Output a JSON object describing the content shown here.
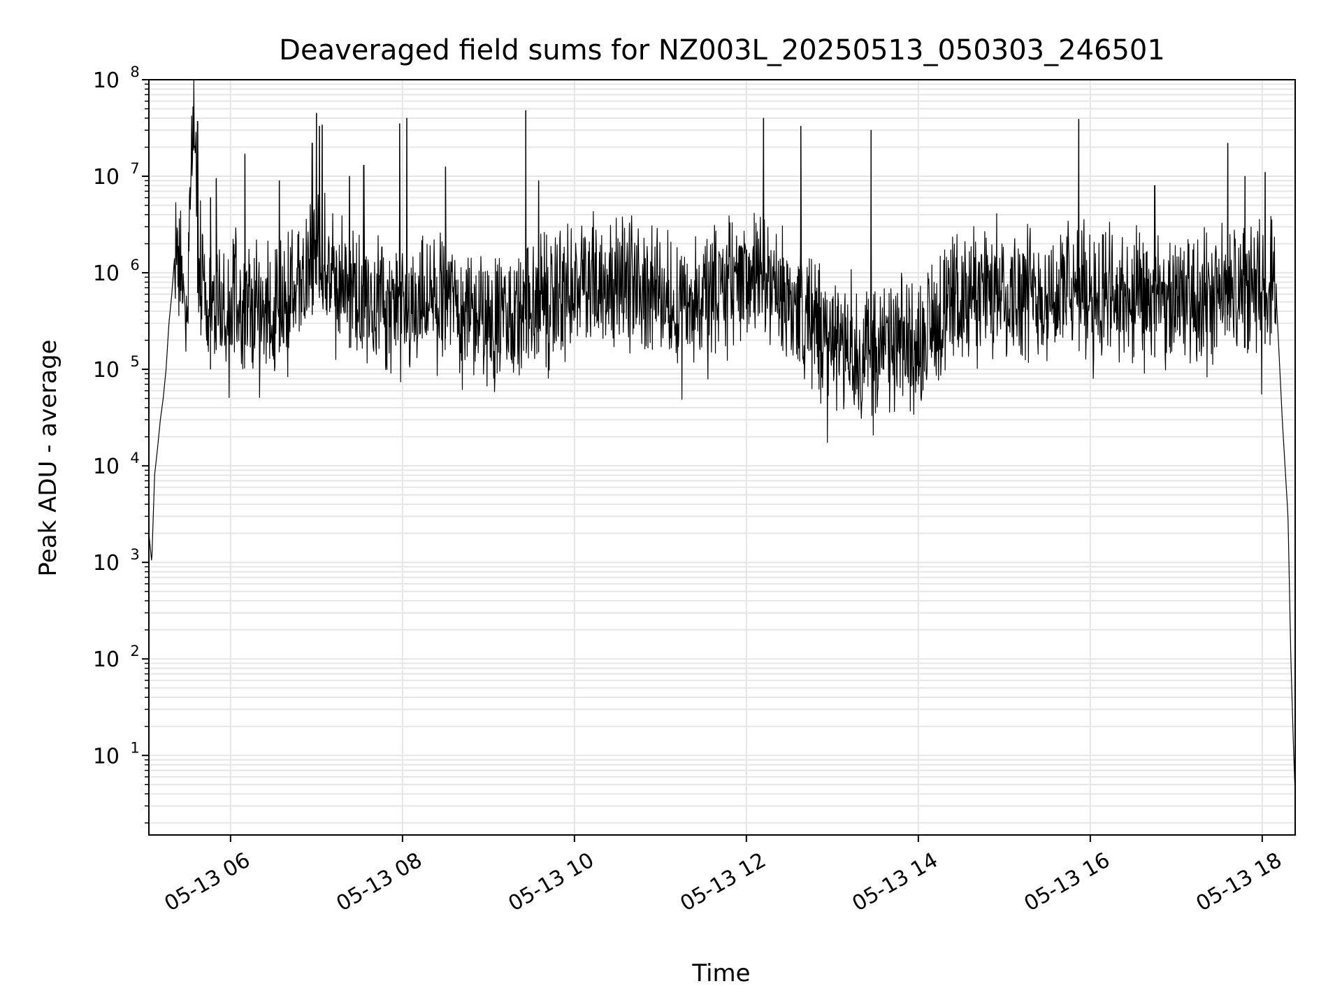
{
  "chart_data": {
    "type": "line",
    "title": "Deaveraged field sums for NZ003L_20250513_050303_246501",
    "xlabel": "Time",
    "ylabel": "Peak ADU - average",
    "yscale": "log",
    "ylim": [
      1.5,
      100000000
    ],
    "xlim": [
      "2025-05-13 05:03",
      "2025-05-13 18:23"
    ],
    "grid": true,
    "line_color": "#000000",
    "grid_color": "#e5e5e5",
    "x_ticks": [
      {
        "value": "2025-05-13 06:00",
        "label": "05-13 06"
      },
      {
        "value": "2025-05-13 08:00",
        "label": "05-13 08"
      },
      {
        "value": "2025-05-13 10:00",
        "label": "05-13 10"
      },
      {
        "value": "2025-05-13 12:00",
        "label": "05-13 12"
      },
      {
        "value": "2025-05-13 14:00",
        "label": "05-13 14"
      },
      {
        "value": "2025-05-13 16:00",
        "label": "05-13 16"
      },
      {
        "value": "2025-05-13 18:00",
        "label": "05-13 18"
      }
    ],
    "y_ticks": [
      {
        "value": 10,
        "base": "10",
        "exp": "1"
      },
      {
        "value": 100,
        "base": "10",
        "exp": "2"
      },
      {
        "value": 1000,
        "base": "10",
        "exp": "3"
      },
      {
        "value": 10000,
        "base": "10",
        "exp": "4"
      },
      {
        "value": 100000,
        "base": "10",
        "exp": "5"
      },
      {
        "value": 1000000,
        "base": "10",
        "exp": "6"
      },
      {
        "value": 10000000,
        "base": "10",
        "exp": "7"
      },
      {
        "value": 100000000,
        "base": "10",
        "exp": "8"
      }
    ],
    "series": [
      {
        "x": [
          "2025-05-13 05:03",
          "2025-05-13 05:05",
          "2025-05-13 05:07",
          "2025-05-13 05:09",
          "2025-05-13 05:11",
          "2025-05-13 05:13",
          "2025-05-13 05:15",
          "2025-05-13 05:17",
          "2025-05-13 05:19",
          "2025-05-13 05:21",
          "2025-05-13 05:25",
          "2025-05-13 05:30",
          "2025-05-13 05:34",
          "2025-05-13 05:40",
          "2025-05-13 06:00",
          "2025-05-13 06:30",
          "2025-05-13 07:00",
          "2025-05-13 07:30",
          "2025-05-13 08:00",
          "2025-05-13 08:30",
          "2025-05-13 09:00",
          "2025-05-13 09:30",
          "2025-05-13 10:00",
          "2025-05-13 10:30",
          "2025-05-13 11:00",
          "2025-05-13 11:30",
          "2025-05-13 12:00",
          "2025-05-13 12:30",
          "2025-05-13 13:00",
          "2025-05-13 13:30",
          "2025-05-13 14:00",
          "2025-05-13 14:30",
          "2025-05-13 15:00",
          "2025-05-13 15:30",
          "2025-05-13 16:00",
          "2025-05-13 16:30",
          "2025-05-13 17:00",
          "2025-05-13 17:30",
          "2025-05-13 18:00",
          "2025-05-13 18:05",
          "2025-05-13 18:10",
          "2025-05-13 18:14",
          "2025-05-13 18:18",
          "2025-05-13 18:20",
          "2025-05-13 18:22",
          "2025-05-13 18:23"
        ],
        "y": [
          2000,
          1000,
          8000,
          15000,
          30000,
          50000,
          100000,
          300000,
          600000,
          1500000,
          1200000,
          800000,
          37000000,
          600000,
          500000,
          400000,
          1500000,
          500000,
          400000,
          600000,
          300000,
          400000,
          700000,
          900000,
          600000,
          500000,
          1000000,
          500000,
          200000,
          150000,
          200000,
          600000,
          700000,
          600000,
          700000,
          500000,
          500000,
          600000,
          800000,
          900000,
          500000,
          30000,
          3000,
          100,
          10,
          4
        ]
      }
    ],
    "spikes": [
      {
        "x": "2025-05-13 05:37",
        "y": 37000000
      },
      {
        "x": "2025-05-13 05:46",
        "y": 6000000
      },
      {
        "x": "2025-05-13 05:50",
        "y": 9500000
      },
      {
        "x": "2025-05-13 06:10",
        "y": 17000000
      },
      {
        "x": "2025-05-13 06:34",
        "y": 9000000
      },
      {
        "x": "2025-05-13 06:57",
        "y": 22000000
      },
      {
        "x": "2025-05-13 07:00",
        "y": 45000000
      },
      {
        "x": "2025-05-13 07:02",
        "y": 33000000
      },
      {
        "x": "2025-05-13 07:04",
        "y": 34000000
      },
      {
        "x": "2025-05-13 07:23",
        "y": 10000000
      },
      {
        "x": "2025-05-13 07:33",
        "y": 13000000
      },
      {
        "x": "2025-05-13 07:58",
        "y": 35000000
      },
      {
        "x": "2025-05-13 08:03",
        "y": 40000000
      },
      {
        "x": "2025-05-13 08:30",
        "y": 12500000
      },
      {
        "x": "2025-05-13 09:26",
        "y": 48000000
      },
      {
        "x": "2025-05-13 09:35",
        "y": 9000000
      },
      {
        "x": "2025-05-13 12:12",
        "y": 40000000
      },
      {
        "x": "2025-05-13 12:38",
        "y": 33000000
      },
      {
        "x": "2025-05-13 13:27",
        "y": 30000000
      },
      {
        "x": "2025-05-13 15:52",
        "y": 39000000
      },
      {
        "x": "2025-05-13 16:45",
        "y": 8000000
      },
      {
        "x": "2025-05-13 17:36",
        "y": 22000000
      },
      {
        "x": "2025-05-13 17:48",
        "y": 10000000
      },
      {
        "x": "2025-05-13 18:02",
        "y": 11000000
      }
    ]
  }
}
